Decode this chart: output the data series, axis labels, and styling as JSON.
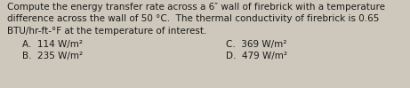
{
  "text_lines": [
    "Compute the energy transfer rate across a 6″ wall of firebrick with a temperature",
    "difference across the wall of 50 °C.  The thermal conductivity of firebrick is 0.65",
    "BTU/hr-ft-°F at the temperature of interest."
  ],
  "option_left": [
    "A.  114 W/m²",
    "B.  235 W/m²"
  ],
  "option_right": [
    "C.  369 W/m²",
    "D.  479 W/m²"
  ],
  "background_color": "#cdc8bb",
  "text_color": "#1a1a1a",
  "font_size": 7.5,
  "fig_width": 4.61,
  "fig_height": 0.99,
  "dpi": 100
}
